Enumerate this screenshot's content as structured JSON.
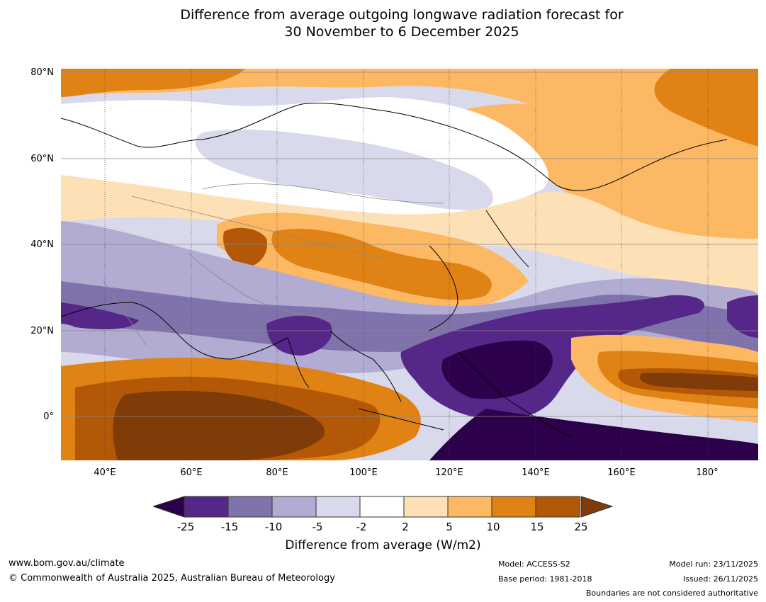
{
  "title": {
    "line1": "Difference from average outgoing longwave radiation forecast for",
    "line2": "30 November to 6 December 2025"
  },
  "axes": {
    "lat_labels": [
      "80°N",
      "60°N",
      "40°N",
      "20°N",
      "0°"
    ],
    "lon_labels": [
      "40°E",
      "60°E",
      "80°E",
      "100°E",
      "120°E",
      "140°E",
      "160°E",
      "180°"
    ]
  },
  "legend": {
    "title": "Difference from average (W/m2)",
    "ticks": [
      "-25",
      "-15",
      "-10",
      "-5",
      "-2",
      "2",
      "5",
      "10",
      "15",
      "25"
    ],
    "colors": [
      "#2d004b",
      "#542788",
      "#8073ac",
      "#b2abd2",
      "#d8daeb",
      "#ffffff",
      "#fee0b6",
      "#fdb863",
      "#e08214",
      "#b35806",
      "#7f3b08"
    ]
  },
  "footer": {
    "website": "www.bom.gov.au/climate",
    "copyright": "© Commonwealth of Australia 2025, Australian Bureau of Meteorology",
    "model": "Model: ACCESS-S2",
    "base_period": "Base period: 1981-2018",
    "model_run": "Model run: 23/11/2025",
    "issued": "Issued: 26/11/2025",
    "disclaimer": "Boundaries are not considered authoritative"
  }
}
